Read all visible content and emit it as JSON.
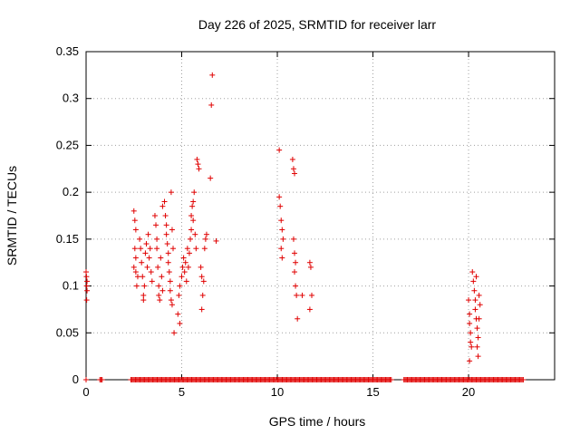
{
  "chart_data": {
    "type": "scatter",
    "title": "Day 226 of 2025, SRMTID for receiver larr",
    "xlabel": "GPS time / hours",
    "ylabel": "SRMTID / TECUs",
    "xlim": [
      0,
      24.5
    ],
    "ylim": [
      0,
      0.35
    ],
    "grid": true,
    "x_ticks": [
      0,
      5,
      10,
      15,
      20
    ],
    "y_ticks": [
      0,
      0.05,
      0.1,
      0.15,
      0.2,
      0.25,
      0.3,
      0.35
    ],
    "x_tick_labels": [
      "0",
      "5",
      "10",
      "15",
      "20"
    ],
    "y_tick_labels": [
      "0",
      "0.05",
      "0.1",
      "0.15",
      "0.2",
      "0.25",
      "0.3",
      "0.35"
    ],
    "marker": "+",
    "color": "#e00000",
    "series": [
      {
        "name": "SRMTID",
        "points": [
          [
            0.0,
            0.115
          ],
          [
            0.02,
            0.11
          ],
          [
            0.03,
            0.1
          ],
          [
            0.05,
            0.095
          ],
          [
            0.03,
            0.085
          ],
          [
            0.05,
            0.105
          ],
          [
            2.5,
            0.18
          ],
          [
            2.55,
            0.17
          ],
          [
            2.6,
            0.16
          ],
          [
            2.55,
            0.14
          ],
          [
            2.6,
            0.13
          ],
          [
            2.5,
            0.12
          ],
          [
            2.6,
            0.115
          ],
          [
            2.7,
            0.11
          ],
          [
            2.65,
            0.1
          ],
          [
            2.8,
            0.15
          ],
          [
            2.85,
            0.14
          ],
          [
            2.9,
            0.125
          ],
          [
            2.95,
            0.11
          ],
          [
            3.0,
            0.09
          ],
          [
            3.0,
            0.085
          ],
          [
            3.05,
            0.1
          ],
          [
            3.1,
            0.135
          ],
          [
            3.15,
            0.145
          ],
          [
            3.2,
            0.12
          ],
          [
            3.25,
            0.155
          ],
          [
            3.3,
            0.13
          ],
          [
            3.35,
            0.14
          ],
          [
            3.4,
            0.115
          ],
          [
            3.45,
            0.105
          ],
          [
            3.6,
            0.175
          ],
          [
            3.65,
            0.165
          ],
          [
            3.7,
            0.15
          ],
          [
            3.7,
            0.14
          ],
          [
            3.75,
            0.12
          ],
          [
            3.8,
            0.1
          ],
          [
            3.8,
            0.09
          ],
          [
            3.85,
            0.085
          ],
          [
            3.9,
            0.13
          ],
          [
            3.95,
            0.11
          ],
          [
            4.0,
            0.095
          ],
          [
            4.0,
            0.185
          ],
          [
            4.1,
            0.19
          ],
          [
            4.15,
            0.175
          ],
          [
            4.2,
            0.165
          ],
          [
            4.2,
            0.155
          ],
          [
            4.25,
            0.145
          ],
          [
            4.3,
            0.135
          ],
          [
            4.3,
            0.125
          ],
          [
            4.35,
            0.115
          ],
          [
            4.4,
            0.105
          ],
          [
            4.4,
            0.095
          ],
          [
            4.45,
            0.085
          ],
          [
            4.5,
            0.08
          ],
          [
            4.45,
            0.2
          ],
          [
            4.5,
            0.16
          ],
          [
            4.6,
            0.05
          ],
          [
            4.55,
            0.14
          ],
          [
            4.8,
            0.07
          ],
          [
            4.9,
            0.06
          ],
          [
            4.85,
            0.09
          ],
          [
            4.9,
            0.1
          ],
          [
            5.0,
            0.11
          ],
          [
            5.05,
            0.12
          ],
          [
            5.1,
            0.13
          ],
          [
            5.15,
            0.115
          ],
          [
            5.2,
            0.125
          ],
          [
            5.25,
            0.105
          ],
          [
            5.3,
            0.14
          ],
          [
            5.35,
            0.12
          ],
          [
            5.4,
            0.135
          ],
          [
            5.45,
            0.15
          ],
          [
            5.5,
            0.16
          ],
          [
            5.5,
            0.175
          ],
          [
            5.55,
            0.185
          ],
          [
            5.6,
            0.19
          ],
          [
            5.65,
            0.2
          ],
          [
            5.6,
            0.17
          ],
          [
            5.7,
            0.155
          ],
          [
            5.75,
            0.14
          ],
          [
            5.8,
            0.235
          ],
          [
            5.85,
            0.23
          ],
          [
            5.9,
            0.225
          ],
          [
            6.0,
            0.12
          ],
          [
            6.05,
            0.11
          ],
          [
            6.1,
            0.09
          ],
          [
            6.05,
            0.075
          ],
          [
            6.15,
            0.105
          ],
          [
            6.2,
            0.14
          ],
          [
            6.25,
            0.15
          ],
          [
            6.3,
            0.155
          ],
          [
            6.5,
            0.215
          ],
          [
            6.55,
            0.293
          ],
          [
            6.6,
            0.325
          ],
          [
            6.8,
            0.148
          ],
          [
            10.1,
            0.245
          ],
          [
            10.1,
            0.195
          ],
          [
            10.15,
            0.185
          ],
          [
            10.2,
            0.17
          ],
          [
            10.25,
            0.16
          ],
          [
            10.3,
            0.15
          ],
          [
            10.2,
            0.14
          ],
          [
            10.25,
            0.13
          ],
          [
            10.8,
            0.235
          ],
          [
            10.85,
            0.225
          ],
          [
            10.9,
            0.22
          ],
          [
            10.85,
            0.15
          ],
          [
            10.9,
            0.135
          ],
          [
            10.95,
            0.125
          ],
          [
            10.9,
            0.115
          ],
          [
            10.95,
            0.1
          ],
          [
            11.0,
            0.09
          ],
          [
            11.05,
            0.065
          ],
          [
            11.3,
            0.09
          ],
          [
            11.7,
            0.125
          ],
          [
            11.75,
            0.12
          ],
          [
            11.8,
            0.09
          ],
          [
            11.7,
            0.075
          ],
          [
            20.0,
            0.085
          ],
          [
            20.05,
            0.07
          ],
          [
            20.05,
            0.06
          ],
          [
            20.1,
            0.05
          ],
          [
            20.1,
            0.04
          ],
          [
            20.05,
            0.02
          ],
          [
            20.15,
            0.035
          ],
          [
            20.2,
            0.115
          ],
          [
            20.25,
            0.105
          ],
          [
            20.3,
            0.095
          ],
          [
            20.35,
            0.085
          ],
          [
            20.35,
            0.075
          ],
          [
            20.4,
            0.065
          ],
          [
            20.45,
            0.055
          ],
          [
            20.5,
            0.045
          ],
          [
            20.45,
            0.035
          ],
          [
            20.5,
            0.025
          ],
          [
            20.55,
            0.09
          ],
          [
            20.6,
            0.08
          ],
          [
            20.55,
            0.065
          ],
          [
            20.4,
            0.11
          ]
        ]
      }
    ],
    "baseline": {
      "y": 0,
      "x_start": 0,
      "x_end": 22.9,
      "gaps": [
        [
          0.05,
          0.7
        ],
        [
          0.9,
          2.3
        ],
        [
          16.0,
          16.6
        ]
      ]
    }
  }
}
